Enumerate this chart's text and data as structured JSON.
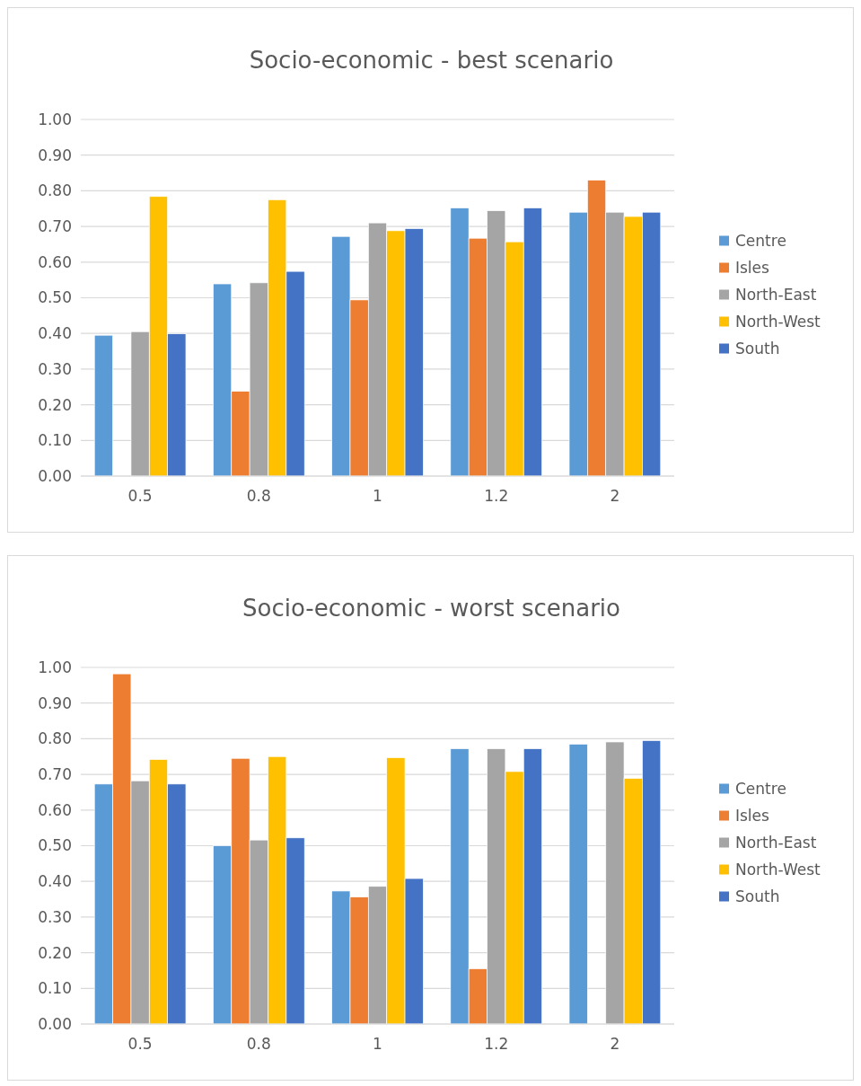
{
  "chart_data": [
    {
      "type": "bar",
      "title": "Socio-economic - best scenario",
      "categories": [
        "0.5",
        "0.8",
        "1",
        "1.2",
        "2"
      ],
      "series": [
        {
          "name": "Centre",
          "color": "#5b9bd5",
          "values": [
            0.395,
            0.539,
            0.672,
            0.752,
            0.74
          ]
        },
        {
          "name": "Isles",
          "color": "#ed7d31",
          "values": [
            null,
            0.238,
            0.494,
            0.667,
            0.83
          ]
        },
        {
          "name": "North-East",
          "color": "#a5a5a5",
          "values": [
            0.405,
            0.542,
            0.71,
            0.744,
            0.74
          ]
        },
        {
          "name": "North-West",
          "color": "#ffc000",
          "values": [
            0.784,
            0.775,
            0.688,
            0.657,
            0.728
          ]
        },
        {
          "name": "South",
          "color": "#4472c4",
          "values": [
            0.399,
            0.574,
            0.694,
            0.752,
            0.74
          ]
        }
      ],
      "ylim": [
        0,
        1
      ],
      "yticks": [
        {
          "value": 0,
          "label": "0.00"
        },
        {
          "value": 0.1,
          "label": "0.10"
        },
        {
          "value": 0.2,
          "label": "0.20"
        },
        {
          "value": 0.3,
          "label": "0.30"
        },
        {
          "value": 0.4,
          "label": "0.40"
        },
        {
          "value": 0.5,
          "label": "0.50"
        },
        {
          "value": 0.6,
          "label": "0.60"
        },
        {
          "value": 0.7,
          "label": "0.70"
        },
        {
          "value": 0.8,
          "label": "0.80"
        },
        {
          "value": 0.9,
          "label": "0.90"
        },
        {
          "value": 1,
          "label": "1.00"
        }
      ],
      "grid": "y",
      "legend": "right"
    },
    {
      "type": "bar",
      "title": "Socio-economic - worst scenario",
      "categories": [
        "0.5",
        "0.8",
        "1",
        "1.2",
        "2"
      ],
      "series": [
        {
          "name": "Centre",
          "color": "#5b9bd5",
          "values": [
            0.673,
            0.5,
            0.373,
            0.772,
            0.785
          ]
        },
        {
          "name": "Isles",
          "color": "#ed7d31",
          "values": [
            0.982,
            0.745,
            0.356,
            0.155,
            null
          ]
        },
        {
          "name": "North-East",
          "color": "#a5a5a5",
          "values": [
            0.682,
            0.516,
            0.386,
            0.772,
            0.791
          ]
        },
        {
          "name": "North-West",
          "color": "#ffc000",
          "values": [
            0.742,
            0.75,
            0.747,
            0.708,
            0.689
          ]
        },
        {
          "name": "South",
          "color": "#4472c4",
          "values": [
            0.673,
            0.522,
            0.408,
            0.772,
            0.795
          ]
        }
      ],
      "ylim": [
        0,
        1
      ],
      "yticks": [
        {
          "value": 0,
          "label": "0.00"
        },
        {
          "value": 0.1,
          "label": "0.10"
        },
        {
          "value": 0.2,
          "label": "0.20"
        },
        {
          "value": 0.3,
          "label": "0.30"
        },
        {
          "value": 0.4,
          "label": "0.40"
        },
        {
          "value": 0.5,
          "label": "0.50"
        },
        {
          "value": 0.6,
          "label": "0.60"
        },
        {
          "value": 0.7,
          "label": "0.70"
        },
        {
          "value": 0.8,
          "label": "0.80"
        },
        {
          "value": 0.9,
          "label": "0.90"
        },
        {
          "value": 1,
          "label": "1.00"
        }
      ],
      "grid": "y",
      "legend": "right"
    }
  ]
}
